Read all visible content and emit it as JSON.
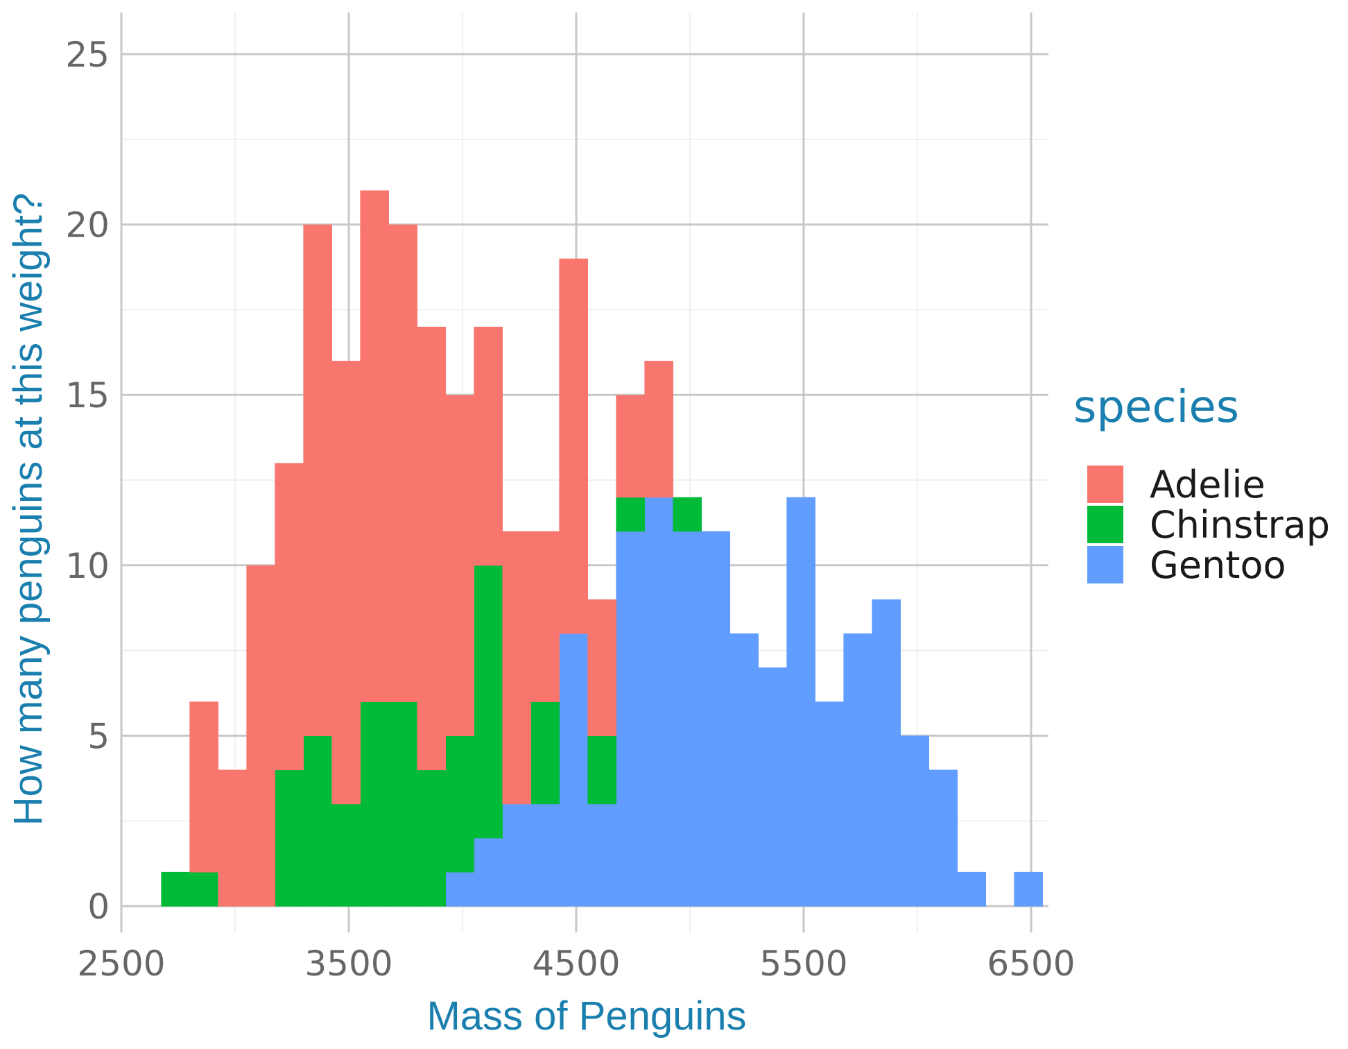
{
  "chart_data": {
    "type": "bar",
    "subtype": "stacked-histogram",
    "title": "",
    "xlabel": "Mass of Penguins",
    "ylabel": "How many penguins at this weight?",
    "xlim": [
      2500,
      6500
    ],
    "ylim": [
      0,
      25
    ],
    "x_ticks": [
      2500,
      3500,
      4500,
      5500,
      6500
    ],
    "x_tick_labels": [
      "2500",
      "3500",
      "4500",
      "5500",
      "6500"
    ],
    "y_ticks": [
      0,
      5,
      10,
      15,
      20,
      25
    ],
    "y_tick_labels": [
      "0",
      "5",
      "10",
      "15",
      "20",
      "25"
    ],
    "grid": true,
    "legend": {
      "title": "species",
      "placement": "right"
    },
    "bin_start": 2675,
    "bin_width": 125,
    "series": [
      {
        "name": "Gentoo",
        "color": "#619CFF",
        "values": [
          0,
          0,
          0,
          0,
          0,
          0,
          0,
          0,
          0,
          0,
          1,
          2,
          3,
          3,
          8,
          3,
          11,
          12,
          11,
          11,
          8,
          7,
          12,
          6,
          8,
          9,
          5,
          4,
          1,
          0,
          1
        ]
      },
      {
        "name": "Chinstrap",
        "color": "#00BA38",
        "values": [
          1,
          1,
          0,
          0,
          4,
          5,
          3,
          6,
          6,
          4,
          4,
          8,
          0,
          3,
          0,
          2,
          1,
          0,
          1,
          0,
          0,
          0,
          0,
          0,
          0,
          0,
          0,
          0,
          0,
          0,
          0
        ]
      },
      {
        "name": "Adelie",
        "color": "#F8766D",
        "values": [
          0,
          5,
          4,
          10,
          9,
          15,
          13,
          15,
          14,
          13,
          10,
          7,
          8,
          5,
          11,
          4,
          3,
          4,
          0,
          0,
          0,
          0,
          0,
          0,
          0,
          0,
          0,
          0,
          0,
          0,
          0
        ]
      }
    ],
    "legend_order": [
      "Adelie",
      "Chinstrap",
      "Gentoo"
    ]
  }
}
